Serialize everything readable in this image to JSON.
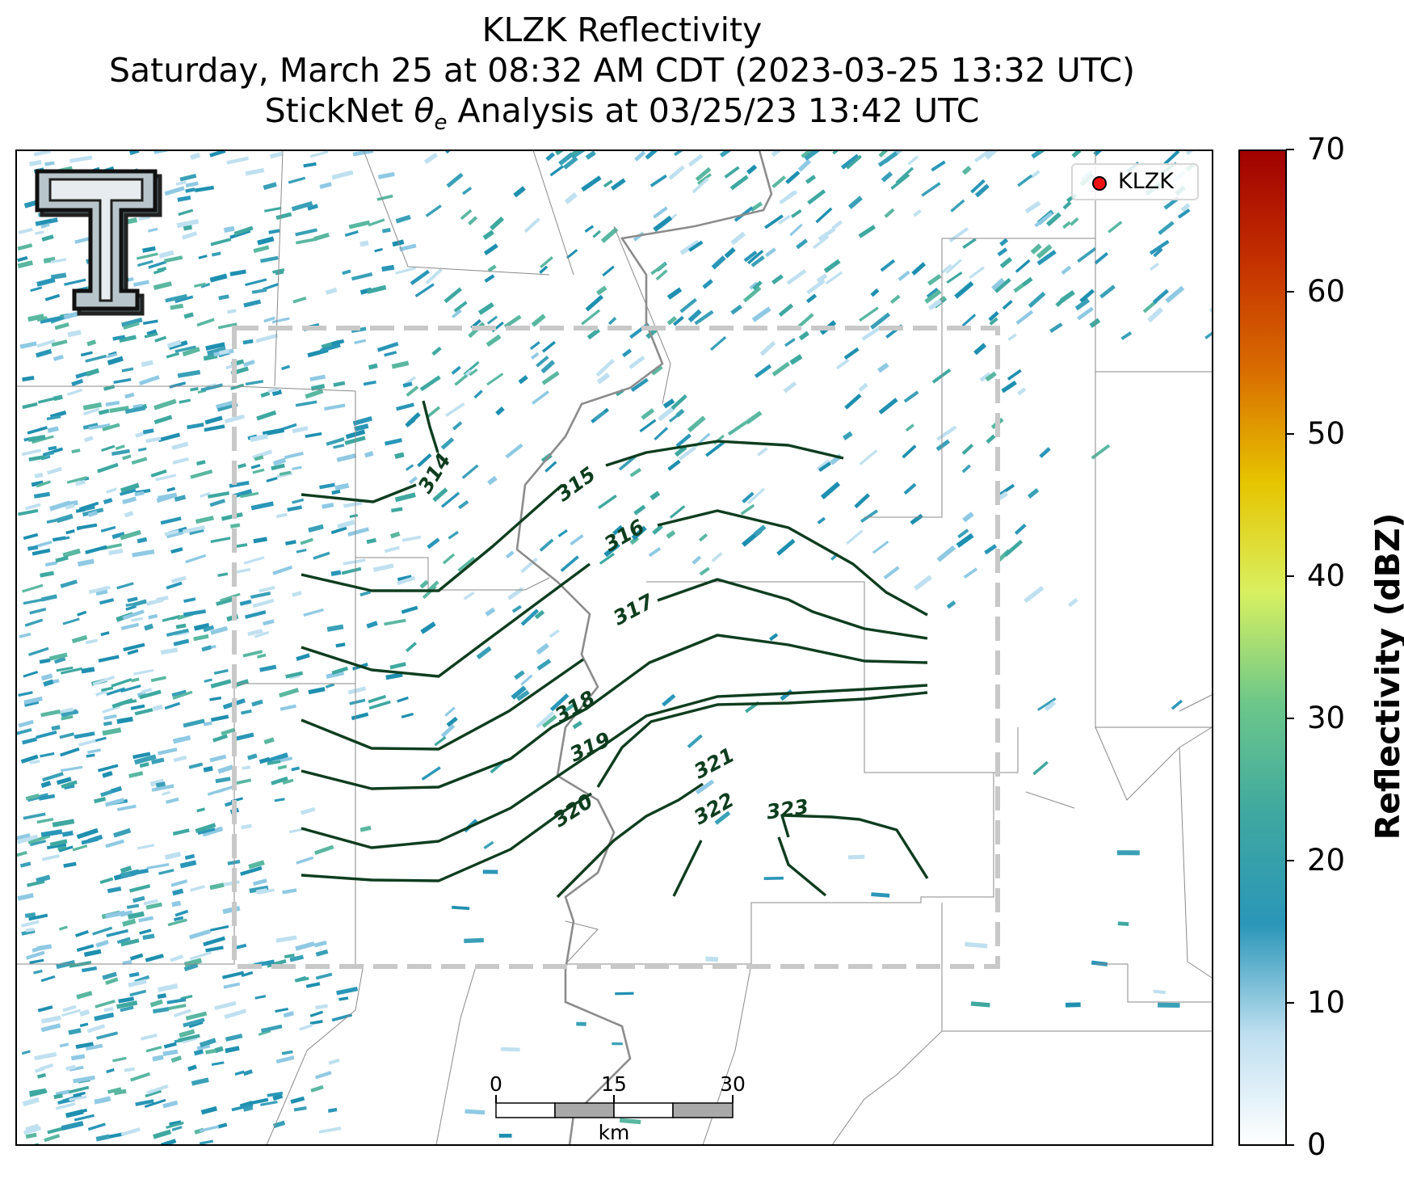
{
  "title": {
    "line1": "KLZK Reflectivity",
    "line2": "Saturday, March 25 at 08:32 AM CDT (2023-03-25 13:32 UTC)",
    "line3_prefix": "StickNet ",
    "line3_symbol": "θ",
    "line3_subscript": "e",
    "line3_suffix": " Analysis at 03/25/23 13:42 UTC"
  },
  "legend": {
    "label": "KLZK",
    "marker_color": "#ee1111"
  },
  "colorbar": {
    "label": "Reflectivity (dBZ)",
    "min": 0,
    "max": 70,
    "ticks": [
      "0",
      "10",
      "20",
      "30",
      "40",
      "50",
      "60",
      "70"
    ],
    "colors": [
      "#ffffff",
      "#bfdff0",
      "#2a96b8",
      "#3fa8a0",
      "#6cc78a",
      "#d9f060",
      "#e6c400",
      "#d96d00",
      "#c43000",
      "#a00000"
    ]
  },
  "scale_bar": {
    "labels": [
      "0",
      "15",
      "30"
    ],
    "unit": "km"
  },
  "logo": {
    "letter": "T"
  },
  "contours": {
    "color": "#0e3d1e",
    "labels": [
      "314",
      "315",
      "316",
      "317",
      "318",
      "319",
      "320",
      "321",
      "322",
      "323"
    ]
  },
  "analysis_box": {
    "style": "dashed",
    "color": "#c8c8c8"
  }
}
